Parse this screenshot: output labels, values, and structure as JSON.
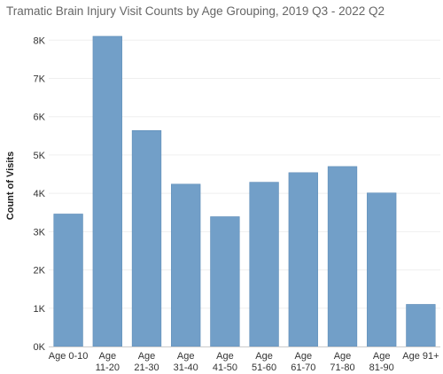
{
  "chart_data": {
    "type": "bar",
    "title": "Tramatic Brain Injury Visit Counts by Age Grouping, 2019 Q3 - 2022 Q2",
    "xlabel": "",
    "ylabel": "Count of Visits",
    "categories": [
      [
        "Age 0-10"
      ],
      [
        "Age",
        "11-20"
      ],
      [
        "Age",
        "21-30"
      ],
      [
        "Age",
        "31-40"
      ],
      [
        "Age",
        "41-50"
      ],
      [
        "Age",
        "51-60"
      ],
      [
        "Age",
        "61-70"
      ],
      [
        "Age",
        "71-80"
      ],
      [
        "Age",
        "81-90"
      ],
      [
        "Age 91+"
      ]
    ],
    "values": [
      3460,
      8100,
      5640,
      4240,
      3390,
      4290,
      4540,
      4700,
      4010,
      1100
    ],
    "ylim": [
      0,
      8400
    ],
    "yticks": [
      0,
      1000,
      2000,
      3000,
      4000,
      5000,
      6000,
      7000,
      8000
    ],
    "ytick_labels": [
      "0K",
      "1K",
      "2K",
      "3K",
      "4K",
      "5K",
      "6K",
      "7K",
      "8K"
    ],
    "grid": true,
    "legend": "none",
    "colors": {
      "bar": "#729fc8",
      "bar_stroke": "#5f8db8",
      "grid": "#efefef",
      "axis": "#d0d0d0"
    }
  }
}
